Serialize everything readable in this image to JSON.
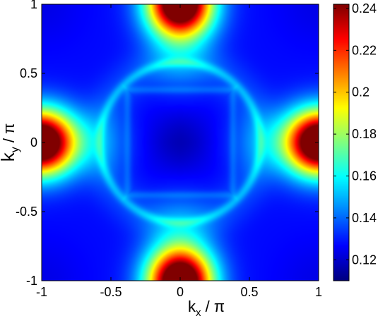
{
  "chart_data": {
    "type": "heatmap",
    "x_ticks": [
      -1,
      -0.5,
      0,
      0.5,
      1
    ],
    "y_ticks": [
      -1,
      -0.5,
      0,
      0.5,
      1
    ],
    "x_tick_labels": [
      "-1",
      "-0.5",
      "0",
      "0.5",
      "1"
    ],
    "y_tick_labels": [
      "-1",
      "-0.5",
      "0",
      "0.5",
      "1"
    ],
    "xlim": [
      -1,
      1
    ],
    "ylim": [
      -1,
      1
    ],
    "xlabel": {
      "main": "k",
      "sub": "x",
      "rest": " / π"
    },
    "ylabel": {
      "main": "k",
      "sub": "y",
      "rest": " / π"
    },
    "colorbar": {
      "range": [
        0.11,
        0.242
      ],
      "ticks": [
        0.12,
        0.14,
        0.16,
        0.18,
        0.2,
        0.22,
        0.24
      ],
      "tick_labels": [
        "0.12",
        "0.14",
        "0.16",
        "0.18",
        "0.2",
        "0.22",
        "0.24"
      ],
      "colormap": "jet"
    },
    "features": {
      "minimum_center_value": 0.112,
      "peak_locations": [
        [
          -1,
          0
        ],
        [
          1,
          0
        ],
        [
          0,
          -1
        ],
        [
          0,
          1
        ]
      ],
      "peak_value": 0.24,
      "corner_value": 0.118,
      "ring_radius": 0.58,
      "inner_square_halfwidth": 0.38
    }
  }
}
